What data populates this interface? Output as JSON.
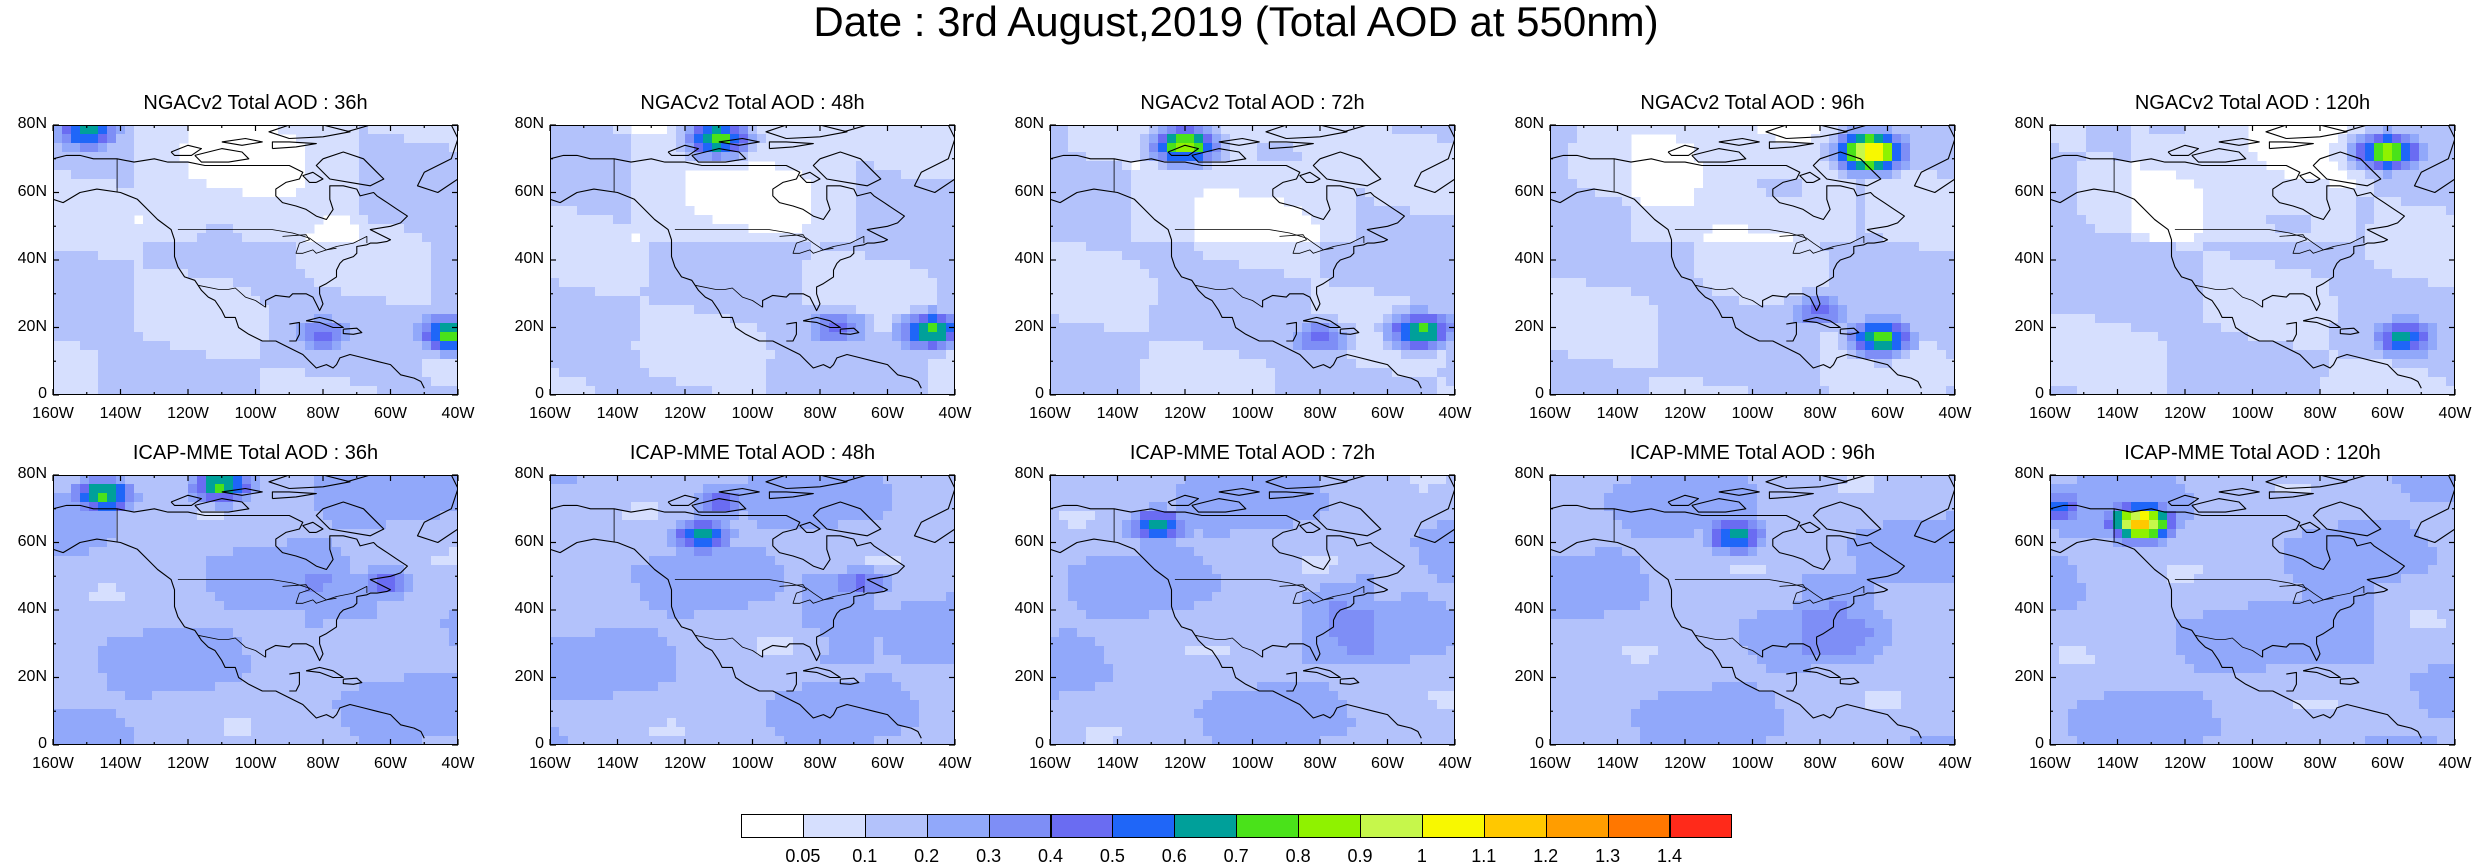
{
  "title": "Date : 3rd August,2019 (Total AOD at 550nm)",
  "panels": [
    {
      "title": "NGACv2 Total AOD : 36h",
      "row": 0,
      "col": 0,
      "hotspots": [
        {
          "lon": -42,
          "lat": 18,
          "level": 8
        },
        {
          "lon": -150,
          "lat": 78,
          "level": 7
        },
        {
          "lon": -80,
          "lat": 18,
          "level": 5
        }
      ]
    },
    {
      "title": "NGACv2 Total AOD : 48h",
      "row": 0,
      "col": 1,
      "hotspots": [
        {
          "lon": -47,
          "lat": 19,
          "level": 8
        },
        {
          "lon": -110,
          "lat": 76,
          "level": 8
        },
        {
          "lon": -75,
          "lat": 20,
          "level": 5
        }
      ]
    },
    {
      "title": "NGACv2 Total AOD : 72h",
      "row": 0,
      "col": 2,
      "hotspots": [
        {
          "lon": -50,
          "lat": 19,
          "level": 8
        },
        {
          "lon": -120,
          "lat": 74,
          "level": 9
        },
        {
          "lon": -80,
          "lat": 17,
          "level": 5
        }
      ]
    },
    {
      "title": "NGACv2 Total AOD : 96h",
      "row": 0,
      "col": 3,
      "hotspots": [
        {
          "lon": -62,
          "lat": 17,
          "level": 8
        },
        {
          "lon": -65,
          "lat": 72,
          "level": 12
        },
        {
          "lon": -80,
          "lat": 25,
          "level": 5
        }
      ]
    },
    {
      "title": "NGACv2 Total AOD : 120h",
      "row": 0,
      "col": 4,
      "hotspots": [
        {
          "lon": -55,
          "lat": 17,
          "level": 7
        },
        {
          "lon": -60,
          "lat": 72,
          "level": 9
        }
      ]
    },
    {
      "title": "ICAP-MME Total AOD : 36h",
      "row": 1,
      "col": 0,
      "hotspots": [
        {
          "lon": -110,
          "lat": 77,
          "level": 8
        },
        {
          "lon": -145,
          "lat": 74,
          "level": 8
        },
        {
          "lon": -62,
          "lat": 48,
          "level": 5
        }
      ]
    },
    {
      "title": "ICAP-MME Total AOD : 48h",
      "row": 1,
      "col": 1,
      "hotspots": [
        {
          "lon": -115,
          "lat": 62,
          "level": 7
        },
        {
          "lon": -110,
          "lat": 72,
          "level": 5
        },
        {
          "lon": -68,
          "lat": 48,
          "level": 5
        }
      ]
    },
    {
      "title": "ICAP-MME Total AOD : 72h",
      "row": 1,
      "col": 2,
      "hotspots": [
        {
          "lon": -128,
          "lat": 65,
          "level": 7
        },
        {
          "lon": -75,
          "lat": 40,
          "level": 4
        }
      ]
    },
    {
      "title": "ICAP-MME Total AOD : 96h",
      "row": 1,
      "col": 3,
      "hotspots": [
        {
          "lon": -105,
          "lat": 62,
          "level": 7
        },
        {
          "lon": -75,
          "lat": 40,
          "level": 4
        }
      ]
    },
    {
      "title": "ICAP-MME Total AOD : 120h",
      "row": 1,
      "col": 4,
      "hotspots": [
        {
          "lon": -158,
          "lat": 70,
          "level": 6
        },
        {
          "lon": -133,
          "lat": 66,
          "level": 12
        }
      ]
    }
  ],
  "map": {
    "lat_labels": [
      "0",
      "20N",
      "40N",
      "60N",
      "80N"
    ],
    "lon_labels": [
      "160W",
      "140W",
      "120W",
      "100W",
      "80W",
      "60W",
      "40W"
    ],
    "lat_range": [
      0,
      80
    ],
    "lon_range": [
      -160,
      -40
    ]
  },
  "colorbar": {
    "colors": [
      "#ffffff",
      "#d6dffe",
      "#b3c2fb",
      "#91a8fa",
      "#7e8ef6",
      "#6a6cf2",
      "#1f66f8",
      "#00a09a",
      "#4ae21a",
      "#8ff200",
      "#c6f74b",
      "#f8f800",
      "#ffc800",
      "#ff9d00",
      "#ff7700",
      "#ff2a1a"
    ],
    "labels": [
      "0.05",
      "0.1",
      "0.2",
      "0.3",
      "0.4",
      "0.5",
      "0.6",
      "0.7",
      "0.8",
      "0.9",
      "1",
      "1.1",
      "1.2",
      "1.3",
      "1.4"
    ]
  }
}
